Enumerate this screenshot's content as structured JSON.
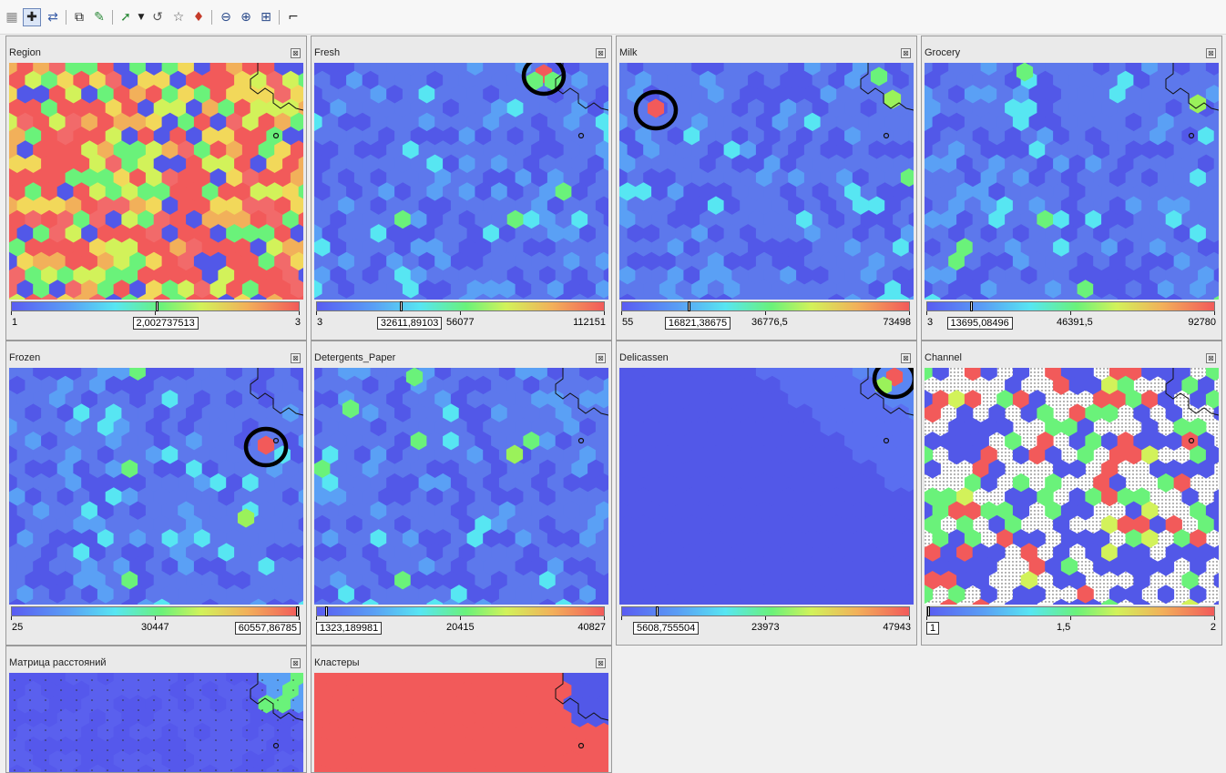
{
  "toolbar": {
    "icons": [
      "grid-icon",
      "crosshair-icon",
      "link-toggle-icon",
      "properties-icon",
      "paint-icon",
      "select-tool-icon",
      "dropdown-arrow-icon",
      "lasso-icon",
      "star-select-icon",
      "color-picker-icon",
      "zoom-out-icon",
      "zoom-in-icon",
      "fit-grid-icon",
      "pointer-tool-icon"
    ]
  },
  "panels": [
    {
      "id": "region",
      "title": "Region",
      "colors": "mixed",
      "min": "1",
      "current": "2,002737513",
      "mid": "",
      "max": "3",
      "marker": 0.5,
      "annot": []
    },
    {
      "id": "fresh",
      "title": "Fresh",
      "colors": "blue",
      "min": "3",
      "current": "32611,89103",
      "mid": "56077",
      "max": "112151",
      "marker": 0.29,
      "annot": [
        [
          252,
          12
        ]
      ],
      "hot": [
        [
          252,
          12,
          "#f25a5a"
        ],
        [
          242,
          20,
          "#6af27a"
        ],
        [
          262,
          20,
          "#6af27a"
        ]
      ]
    },
    {
      "id": "milk",
      "title": "Milk",
      "colors": "blue",
      "min": "55",
      "current": "16821,38675",
      "mid": "36776,5",
      "max": "73498",
      "marker": 0.23,
      "annot": [
        [
          40,
          50
        ]
      ],
      "hot": [
        [
          40,
          50,
          "#f25a5a"
        ],
        [
          285,
          15,
          "#6af27a"
        ],
        [
          300,
          40,
          "#9af25a"
        ]
      ]
    },
    {
      "id": "grocery",
      "title": "Grocery",
      "colors": "blue",
      "min": "3",
      "current": "13695,08496",
      "mid": "46391,5",
      "max": "92780",
      "marker": 0.15,
      "annot": [],
      "hot": [
        [
          110,
          10,
          "#6af27a"
        ],
        [
          300,
          45,
          "#9af25a"
        ]
      ]
    },
    {
      "id": "frozen",
      "title": "Frozen",
      "colors": "blue",
      "min": "25",
      "current": "60557,86785",
      "mid": "30447",
      "max": "",
      "marker": 0.995,
      "annot": [
        [
          282,
          85
        ]
      ],
      "hot": [
        [
          282,
          85,
          "#f25a5a"
        ],
        [
          260,
          165,
          "#9af25a"
        ]
      ]
    },
    {
      "id": "detergents",
      "title": "Detergents_Paper",
      "colors": "blue",
      "min": "",
      "current": "1323,189981",
      "mid": "20415",
      "max": "40827",
      "marker": 0.03,
      "annot": [],
      "hot": [
        [
          110,
          10,
          "#6af27a"
        ],
        [
          40,
          45,
          "#6af27a"
        ],
        [
          220,
          95,
          "#9af25a"
        ]
      ]
    },
    {
      "id": "delicassen",
      "title": "Delicassen",
      "colors": "smooth",
      "min": "",
      "current": "5608,755504",
      "mid": "23973",
      "max": "47943",
      "marker": 0.12,
      "annot": [
        [
          302,
          10
        ]
      ],
      "hot": [
        [
          302,
          10,
          "#f25a5a"
        ],
        [
          290,
          20,
          "#9af25a"
        ]
      ]
    },
    {
      "id": "channel",
      "title": "Channel",
      "colors": "channel",
      "min": "",
      "current": "1",
      "mid": "1,5",
      "max": "2",
      "marker": 0,
      "annot": []
    },
    {
      "id": "distance",
      "title": "Матрица расстояний",
      "colors": "distance",
      "annot": []
    },
    {
      "id": "clusters",
      "title": "Кластеры",
      "colors": "clusters",
      "annot": []
    }
  ],
  "colors": {
    "blue_base": "#5d78ec",
    "blue_dark": "#5258e8",
    "cyan": "#57e6f2",
    "green": "#6af27a",
    "yellow": "#d2f25a",
    "orange": "#f2b05a",
    "red": "#f25a5a"
  }
}
